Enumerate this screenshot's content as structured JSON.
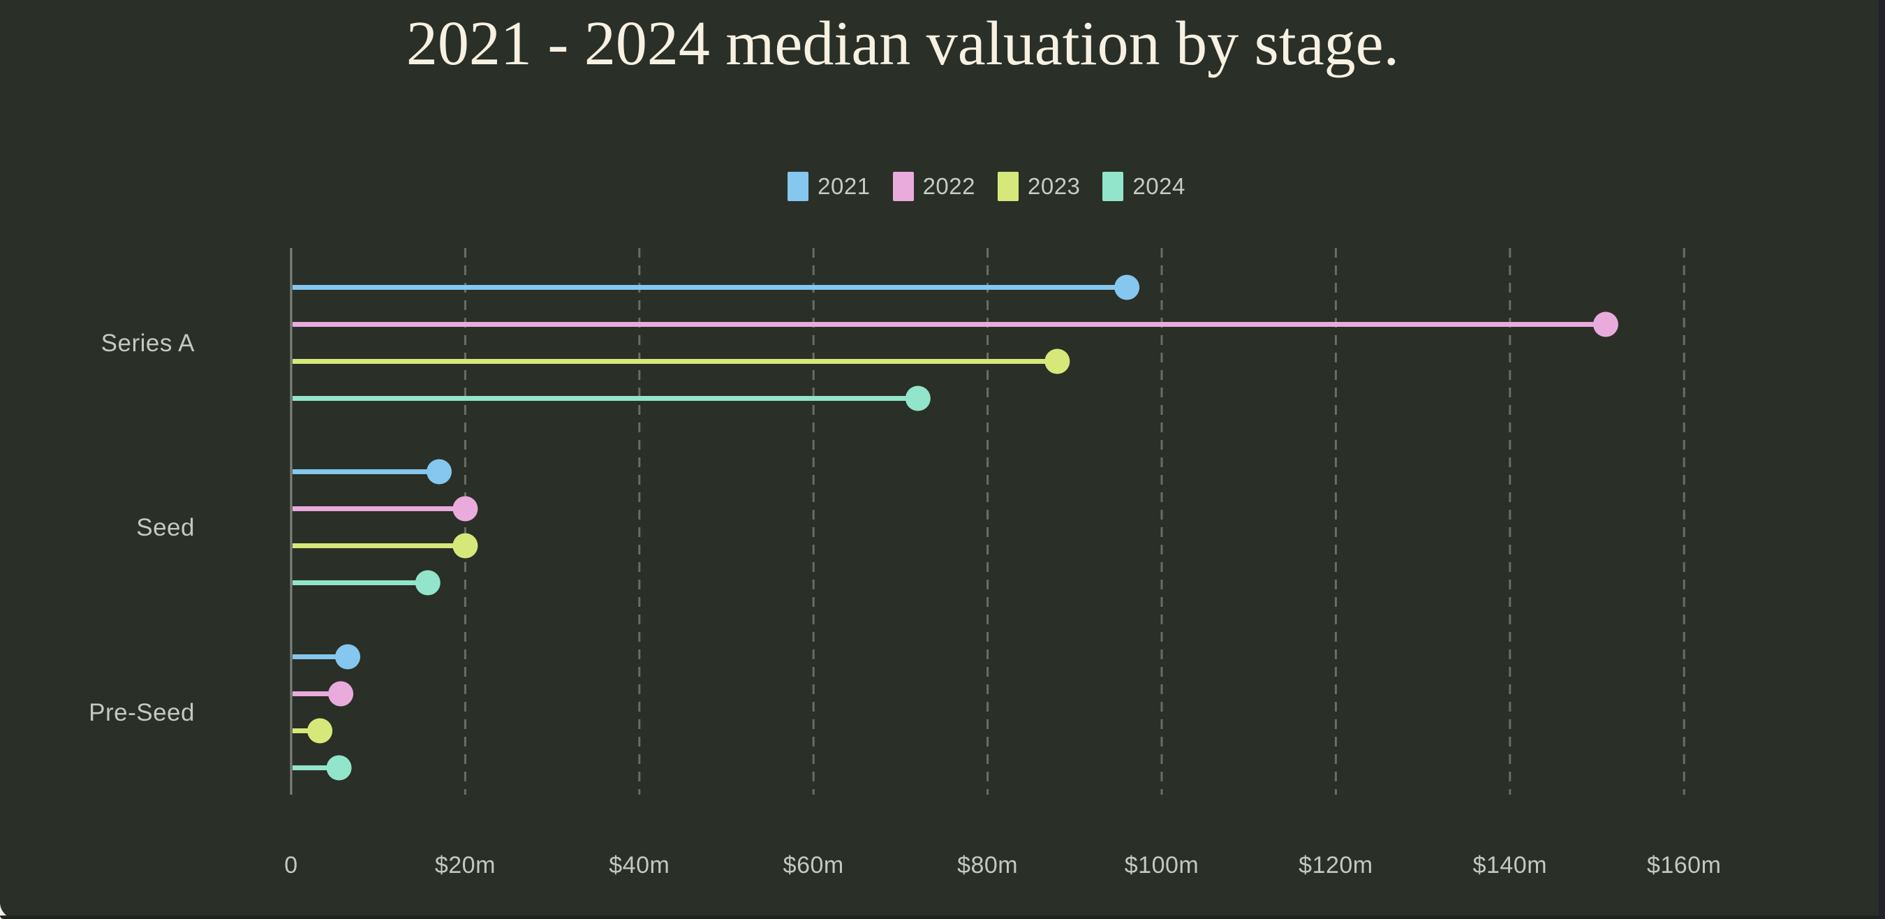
{
  "page": {
    "background_color": "#2a2f27",
    "outer_background_color": "#f2efe7",
    "right_edge_strip_color": "#232229",
    "bottom_edge_color": "#1f241e"
  },
  "chart_data": {
    "type": "bar",
    "variant": "horizontal-lollipop",
    "title": "2021 - 2024 median valuation by stage.",
    "title_color": "#f6f1e2",
    "categories": [
      "Series A",
      "Seed",
      "Pre-Seed"
    ],
    "series": [
      {
        "name": "2021",
        "color": "#85c7ee",
        "values": [
          96,
          17,
          6.5
        ]
      },
      {
        "name": "2022",
        "color": "#e9abdc",
        "values": [
          151,
          20,
          5.7
        ]
      },
      {
        "name": "2023",
        "color": "#d7e87a",
        "values": [
          88,
          20,
          3.3
        ]
      },
      {
        "name": "2024",
        "color": "#92e4cb",
        "values": [
          72,
          15.7,
          5.5
        ]
      }
    ],
    "values_unit": "USD millions",
    "x_ticks": [
      {
        "value": 0,
        "label": "0"
      },
      {
        "value": 20,
        "label": "$20m"
      },
      {
        "value": 40,
        "label": "$40m"
      },
      {
        "value": 60,
        "label": "$60m"
      },
      {
        "value": 80,
        "label": "$80m"
      },
      {
        "value": 100,
        "label": "$100m"
      },
      {
        "value": 120,
        "label": "$120m"
      },
      {
        "value": 140,
        "label": "$140m"
      },
      {
        "value": 160,
        "label": "$160m"
      }
    ],
    "xlim": [
      0,
      166
    ],
    "xlabel": "",
    "ylabel": "",
    "grid": "vertical-dashed",
    "gridline_color": "#686e67",
    "axis_line_color": "#7e847d",
    "label_color": "#c3c9c2",
    "legend_position": "top-center"
  }
}
